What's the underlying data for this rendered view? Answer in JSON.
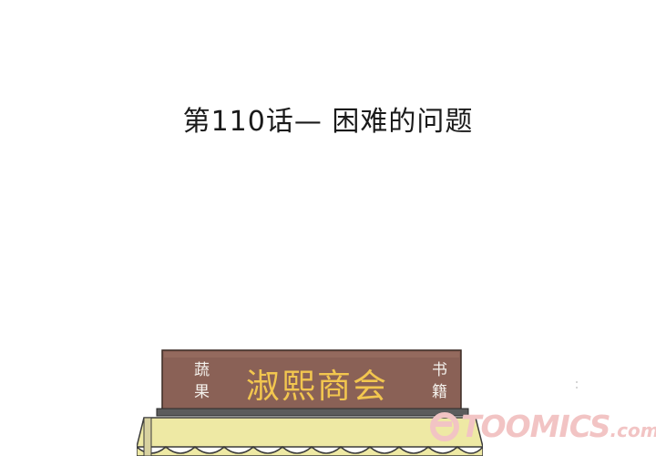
{
  "chapter": {
    "title": "第110话— 困难的问题"
  },
  "shop_sign": {
    "name": "淑熙商会",
    "left_chars": [
      "蔬",
      "果"
    ],
    "right_chars": [
      "书",
      "籍"
    ]
  },
  "watermark": {
    "text": "TOOMICS",
    "suffix": ".com"
  },
  "colors": {
    "sign_board": "#8a6156",
    "sign_text": "#f2c64f",
    "awning": "#eee9a4",
    "watermark": "#f2c4c4"
  }
}
